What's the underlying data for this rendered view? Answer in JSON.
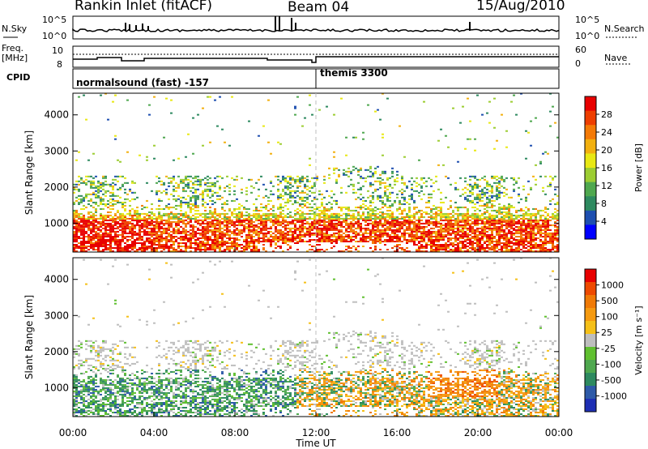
{
  "header": {
    "station": "Rankin Inlet (fitACF)",
    "beam": "Beam 04",
    "date": "15/Aug/2010"
  },
  "top_panels": {
    "nsky_label": "N.Sky",
    "nsky_ticks": [
      "10^5",
      "10^0"
    ],
    "nsearch_label": "N.Search",
    "nsearch_ticks": [
      "10^5",
      "10^0"
    ],
    "freq_label_1": "Freq.",
    "freq_label_2": "[MHz]",
    "freq_ticks": [
      "10",
      "8"
    ],
    "nave_label": "Nave",
    "nave_ticks": [
      "60",
      "0"
    ],
    "cpid_label": "CPID",
    "cpid_segments": [
      {
        "label": "normalsound (fast) -157",
        "start": "00:00"
      },
      {
        "label": "themis 3300",
        "start": "12:00"
      }
    ]
  },
  "chart_data": [
    {
      "type": "heatmap",
      "name": "power",
      "xlabel": "",
      "ylabel": "Slant Range [km]",
      "yticks": [
        "1000",
        "2000",
        "3000",
        "4000"
      ],
      "ylim": [
        200,
        4600
      ],
      "xlim": [
        "00:00",
        "24:00"
      ],
      "colorbar": {
        "label": "Power [dB]",
        "ticks": [
          "4",
          "8",
          "12",
          "16",
          "20",
          "24",
          "28"
        ],
        "colors": [
          "#0000ff",
          "#1e4fb0",
          "#2e8a60",
          "#4fa84f",
          "#9ccd32",
          "#e8e814",
          "#f2b00f",
          "#f47a06",
          "#ee3e00",
          "#e80000"
        ]
      }
    },
    {
      "type": "heatmap",
      "name": "velocity",
      "xlabel": "Time UT",
      "ylabel": "Slant Range [km]",
      "yticks": [
        "1000",
        "2000",
        "3000",
        "4000"
      ],
      "ylim": [
        200,
        4600
      ],
      "xlim": [
        "00:00",
        "24:00"
      ],
      "xticks": [
        "00:00",
        "04:00",
        "08:00",
        "12:00",
        "16:00",
        "20:00",
        "00:00"
      ],
      "colorbar": {
        "label": "Velocity [m s⁻¹]",
        "ticks": [
          "1000",
          "500",
          "100",
          "25",
          "-25",
          "-100",
          "-500",
          "-1000"
        ],
        "colors": [
          "#1e2fb4",
          "#2e5aa8",
          "#2e8a60",
          "#4fa84f",
          "#60c030",
          "#bebebe",
          "#f5c018",
          "#f59a10",
          "#f07a06",
          "#ee4a00",
          "#e80000"
        ]
      }
    }
  ]
}
